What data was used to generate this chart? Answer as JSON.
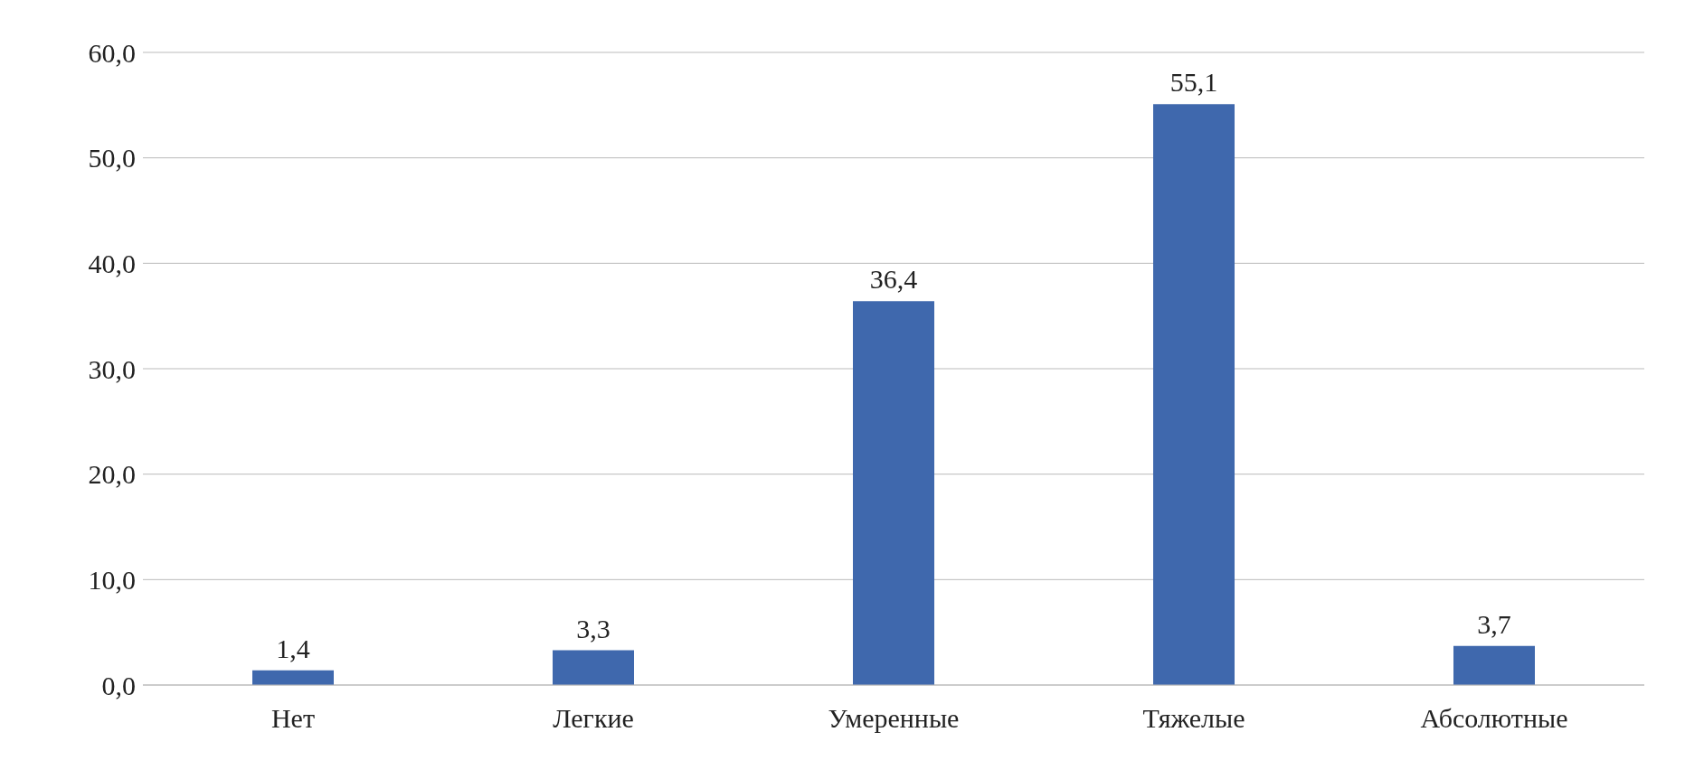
{
  "chart_data": {
    "type": "bar",
    "categories": [
      "Нет",
      "Легкие",
      "Умеренные",
      "Тяжелые",
      "Абсолютные"
    ],
    "values": [
      1.4,
      3.3,
      36.4,
      55.1,
      3.7
    ],
    "value_labels": [
      "1,4",
      "3,3",
      "36,4",
      "55,1",
      "3,7"
    ],
    "color": "#3f68ad",
    "ylim": [
      0,
      60
    ],
    "yticks": [
      {
        "value": 0,
        "label": "0,0"
      },
      {
        "value": 10,
        "label": "10,0"
      },
      {
        "value": 20,
        "label": "20,0"
      },
      {
        "value": 30,
        "label": "30,0"
      },
      {
        "value": 40,
        "label": "40,0"
      },
      {
        "value": 50,
        "label": "50,0"
      },
      {
        "value": 60,
        "label": "60,0"
      }
    ],
    "grid": "y",
    "legend": false
  }
}
